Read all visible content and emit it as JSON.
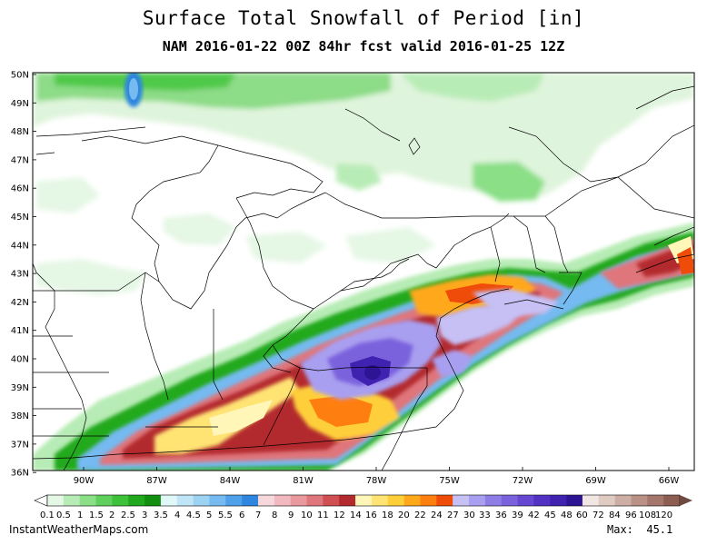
{
  "title": "Surface Total Snowfall of Period [in]",
  "subtitle": "NAM 2016-01-22 00Z 84hr fcst valid 2016-01-25 12Z",
  "credit": "InstantWeatherMaps.com",
  "max_label": "Max:  45.1",
  "lat_labels": [
    "50N",
    "49N",
    "48N",
    "47N",
    "46N",
    "45N",
    "44N",
    "43N",
    "42N",
    "41N",
    "40N",
    "39N",
    "38N",
    "37N",
    "36N"
  ],
  "lon_labels": [
    "90W",
    "87W",
    "84W",
    "81W",
    "78W",
    "75W",
    "72W",
    "69W",
    "66W"
  ],
  "colorbar": {
    "labels": [
      "0.1",
      "0.5",
      "1",
      "1.5",
      "2",
      "2.5",
      "3",
      "3.5",
      "4",
      "4.5",
      "5",
      "5.5",
      "6",
      "7",
      "8",
      "9",
      "10",
      "11",
      "12",
      "14",
      "16",
      "18",
      "20",
      "22",
      "24",
      "27",
      "30",
      "33",
      "36",
      "39",
      "42",
      "45",
      "48",
      "60",
      "72",
      "84",
      "96",
      "108",
      "120"
    ],
    "colors": [
      "#e5f7e5",
      "#b8ecb6",
      "#8adf87",
      "#5fd05b",
      "#3ec13a",
      "#20a91c",
      "#138f10",
      "#e0f8f8",
      "#bfe6f7",
      "#9cd2f2",
      "#75baf0",
      "#4ea0e8",
      "#2f86de",
      "#f6d8dc",
      "#f1b9bf",
      "#e9999e",
      "#df767b",
      "#cf4f53",
      "#b32a2e",
      "#fff6b8",
      "#ffe373",
      "#ffcf3a",
      "#ffa81a",
      "#ff7e10",
      "#ef4c0a",
      "#c6c0f5",
      "#a99ff0",
      "#8f7de6",
      "#7a62dd",
      "#6547d2",
      "#5232c3",
      "#3f22b0",
      "#2d1495",
      "#f1e6e2",
      "#e0cbc3",
      "#cdaea4",
      "#b99186",
      "#a5766b",
      "#8e5d52"
    ]
  }
}
